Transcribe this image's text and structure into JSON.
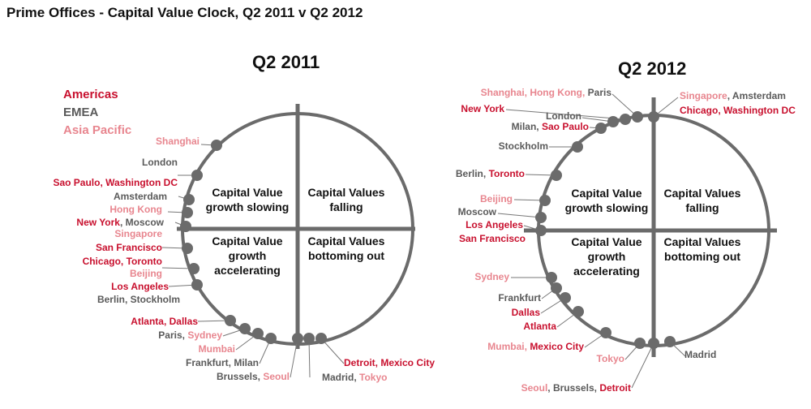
{
  "title": "Prime Offices - Capital Value Clock, Q2 2011 v Q2 2012",
  "colors": {
    "americas": "#c8102e",
    "emea": "#5a5a5a",
    "asia_pacific": "#e8868f",
    "marker": "#6b6b6b",
    "ink": "#111111"
  },
  "legend": {
    "americas": "Americas",
    "emea": "EMEA",
    "asia_pacific": "Asia Pacific"
  },
  "quadrants": {
    "top_left": [
      "Capital Value",
      "growth slowing"
    ],
    "top_right": [
      "Capital Values",
      "falling"
    ],
    "bottom_left": [
      "Capital Value",
      "growth",
      "accelerating"
    ],
    "bottom_right": [
      "Capital Values",
      "bottoming out"
    ]
  },
  "panels": [
    {
      "title": "Q2 2011",
      "labels": [
        {
          "parts": [
            {
              "t": "Shanghai",
              "r": "asia_pacific"
            }
          ]
        },
        {
          "parts": [
            {
              "t": "London",
              "r": "emea"
            }
          ]
        },
        {
          "parts": [
            {
              "t": "Sao Paulo, Washington DC",
              "r": "americas"
            }
          ]
        },
        {
          "parts": [
            {
              "t": "Amsterdam",
              "r": "emea"
            }
          ]
        },
        {
          "parts": [
            {
              "t": "Hong Kong",
              "r": "asia_pacific"
            }
          ]
        },
        {
          "parts": [
            {
              "t": "New York",
              "r": "americas"
            },
            {
              "t": ", Moscow",
              "r": "emea"
            }
          ]
        },
        {
          "parts": [
            {
              "t": "Singapore",
              "r": "asia_pacific"
            }
          ]
        },
        {
          "parts": [
            {
              "t": "San Francisco",
              "r": "americas"
            }
          ]
        },
        {
          "parts": [
            {
              "t": "Chicago, Toronto",
              "r": "americas"
            }
          ]
        },
        {
          "parts": [
            {
              "t": "Beijing",
              "r": "asia_pacific"
            }
          ]
        },
        {
          "parts": [
            {
              "t": "Los Angeles",
              "r": "americas"
            }
          ]
        },
        {
          "parts": [
            {
              "t": "Berlin, Stockholm",
              "r": "emea"
            }
          ]
        },
        {
          "parts": [
            {
              "t": "Atlanta, Dallas",
              "r": "americas"
            }
          ]
        },
        {
          "parts": [
            {
              "t": "Paris, ",
              "r": "emea"
            },
            {
              "t": "Sydney",
              "r": "asia_pacific"
            }
          ]
        },
        {
          "parts": [
            {
              "t": "Mumbai",
              "r": "asia_pacific"
            }
          ]
        },
        {
          "parts": [
            {
              "t": "Frankfurt, Milan",
              "r": "emea"
            }
          ]
        },
        {
          "parts": [
            {
              "t": "Brussels, ",
              "r": "emea"
            },
            {
              "t": "Seoul",
              "r": "asia_pacific"
            }
          ]
        },
        {
          "parts": [
            {
              "t": "Madrid, ",
              "r": "emea"
            },
            {
              "t": "Tokyo",
              "r": "asia_pacific"
            }
          ]
        },
        {
          "parts": [
            {
              "t": "Detroit, Mexico City",
              "r": "americas"
            }
          ]
        }
      ]
    },
    {
      "title": "Q2 2012",
      "labels": [
        {
          "parts": [
            {
              "t": "Shanghai, Hong Kong, ",
              "r": "asia_pacific"
            },
            {
              "t": "Paris",
              "r": "emea"
            }
          ]
        },
        {
          "parts": [
            {
              "t": "New York",
              "r": "americas"
            }
          ]
        },
        {
          "parts": [
            {
              "t": "London",
              "r": "emea"
            }
          ]
        },
        {
          "parts": [
            {
              "t": "Milan, ",
              "r": "emea"
            },
            {
              "t": "Sao Paulo",
              "r": "americas"
            }
          ]
        },
        {
          "parts": [
            {
              "t": "Stockholm",
              "r": "emea"
            }
          ]
        },
        {
          "parts": [
            {
              "t": "Berlin, ",
              "r": "emea"
            },
            {
              "t": "Toronto",
              "r": "americas"
            }
          ]
        },
        {
          "parts": [
            {
              "t": "Beijing",
              "r": "asia_pacific"
            }
          ]
        },
        {
          "parts": [
            {
              "t": "Moscow",
              "r": "emea"
            }
          ]
        },
        {
          "parts": [
            {
              "t": "Los Angeles",
              "r": "americas"
            }
          ]
        },
        {
          "parts": [
            {
              "t": "San Francisco",
              "r": "americas"
            }
          ]
        },
        {
          "parts": [
            {
              "t": "Sydney",
              "r": "asia_pacific"
            }
          ]
        },
        {
          "parts": [
            {
              "t": "Frankfurt",
              "r": "emea"
            }
          ]
        },
        {
          "parts": [
            {
              "t": "Dallas",
              "r": "americas"
            }
          ]
        },
        {
          "parts": [
            {
              "t": "Atlanta",
              "r": "americas"
            }
          ]
        },
        {
          "parts": [
            {
              "t": "Mumbai, ",
              "r": "asia_pacific"
            },
            {
              "t": "Mexico City",
              "r": "americas"
            }
          ]
        },
        {
          "parts": [
            {
              "t": "Tokyo",
              "r": "asia_pacific"
            }
          ]
        },
        {
          "parts": [
            {
              "t": "Seoul",
              "r": "asia_pacific"
            },
            {
              "t": ", Brussels, ",
              "r": "emea"
            },
            {
              "t": "Detroit",
              "r": "americas"
            }
          ]
        },
        {
          "parts": [
            {
              "t": "Madrid",
              "r": "emea"
            }
          ]
        },
        {
          "parts": [
            {
              "t": "Singapore",
              "r": "asia_pacific"
            },
            {
              "t": ", Amsterdam",
              "r": "emea"
            }
          ]
        },
        {
          "parts": [
            {
              "t": "Chicago, Washington DC",
              "r": "americas"
            }
          ]
        }
      ]
    }
  ]
}
